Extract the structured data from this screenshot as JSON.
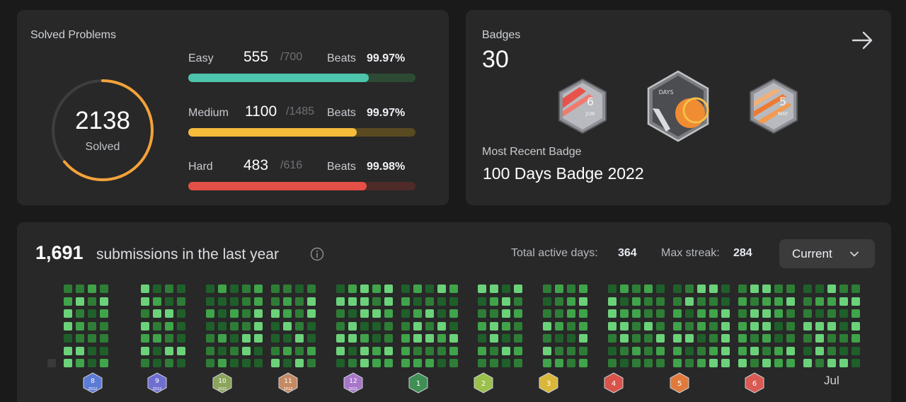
{
  "solved": {
    "title": "Solved Problems",
    "total": "2138",
    "total_label": "Solved",
    "ring_progress": 0.64,
    "difficulties": [
      {
        "name": "Easy",
        "solved": "555",
        "total": "/700",
        "beats_label": "Beats",
        "beats": "99.97%",
        "fraction": 0.793,
        "color": "#2cbb5d",
        "bar_color": "#4dc5ad",
        "track_color": "#2d4b34"
      },
      {
        "name": "Medium",
        "solved": "1100",
        "total": "/1485",
        "beats_label": "Beats",
        "beats": "99.97%",
        "fraction": 0.741,
        "color": "#ffc01e",
        "bar_color": "#f6bd3c",
        "track_color": "#5a4a22"
      },
      {
        "name": "Hard",
        "solved": "483",
        "total": "/616",
        "beats_label": "Beats",
        "beats": "99.98%",
        "fraction": 0.784,
        "color": "#ef4743",
        "bar_color": "#e55046",
        "track_color": "#4e2a28"
      }
    ],
    "ring_color": "#f3a23a"
  },
  "badges": {
    "label": "Badges",
    "count": "30",
    "recent_label": "Most Recent Badge",
    "recent_name": "100 Days Badge 2022",
    "icons": [
      {
        "name": "june-badge",
        "text_top": "6",
        "text_bottom": "JUN"
      },
      {
        "name": "days-badge",
        "text_top": "DAYS"
      },
      {
        "name": "may-badge",
        "text_top": "5",
        "text_bottom": "MAY"
      }
    ]
  },
  "submissions": {
    "count": "1,691",
    "text": "submissions in the last year",
    "active_label": "Total active days:",
    "active_value": "364",
    "streak_label": "Max streak:",
    "streak_value": "284",
    "dropdown_value": "Current",
    "months": [
      {
        "label": "8",
        "year": "2022",
        "color": "#5b7bd5"
      },
      {
        "label": "9",
        "year": "2022",
        "color": "#6f6fd0"
      },
      {
        "label": "10",
        "year": "2022",
        "color": "#8aa45b"
      },
      {
        "label": "11",
        "year": "2022",
        "color": "#c48a62"
      },
      {
        "label": "12",
        "year": "2022",
        "color": "#a776c9"
      },
      {
        "label": "1",
        "color": "#3f8f55"
      },
      {
        "label": "2",
        "color": "#9bc14a"
      },
      {
        "label": "3",
        "color": "#d9b73a"
      },
      {
        "label": "4",
        "color": "#d9534a"
      },
      {
        "label": "5",
        "color": "#e07a3c"
      },
      {
        "label": "6",
        "color": "#d85a52"
      },
      {
        "label": "Jul"
      }
    ]
  }
}
